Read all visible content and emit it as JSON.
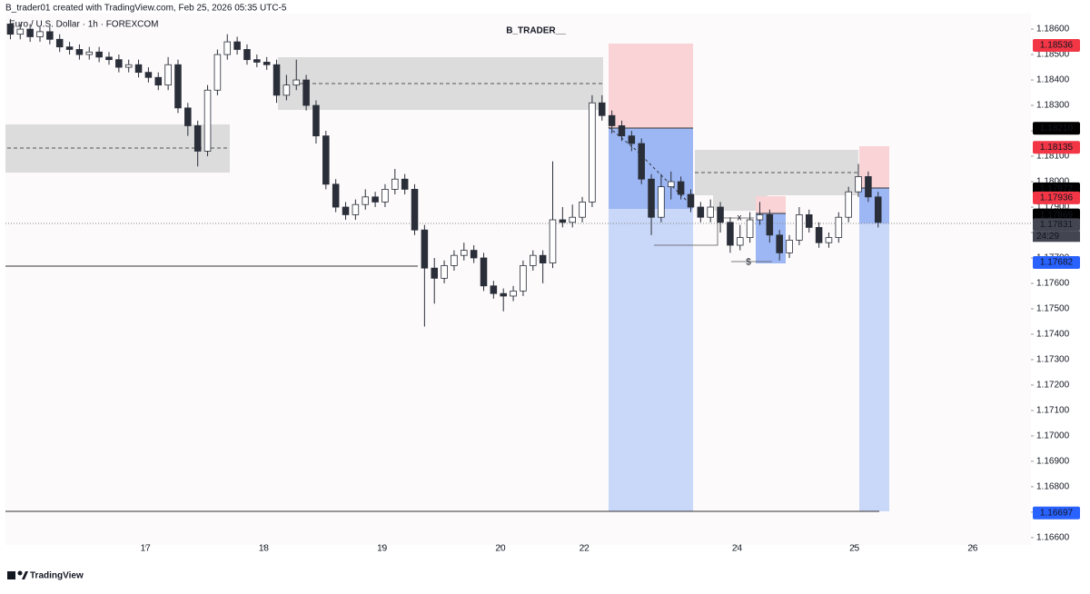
{
  "header": "B_trader01 created with TradingView.com, Feb 25, 2026 05:35 UTC-5",
  "symbol": "Euro / U.S. Dollar · 1h · FOREXCOM",
  "brand": "TradingView",
  "chart_data": {
    "type": "candlestick",
    "title": "B_TRADER__",
    "open": [
      1.1862,
      1.1858,
      1.186,
      1.1857,
      1.1859,
      1.1856,
      1.1853,
      1.1852,
      1.185,
      1.1851,
      1.1849,
      1.1848,
      1.1845,
      1.1846,
      1.1843,
      1.1841,
      1.1838,
      1.1846,
      1.1829,
      1.1822,
      1.1812,
      1.1836,
      1.185,
      1.1855,
      1.1852,
      1.1848,
      1.1847,
      1.1846,
      1.1834,
      1.1838,
      1.184,
      1.183,
      1.1818,
      1.1799,
      1.179,
      1.1787,
      1.1791,
      1.1794,
      1.1792,
      1.1797,
      1.1801,
      1.1797,
      1.1781,
      1.1766,
      1.1762,
      1.1767,
      1.1771,
      1.1773,
      1.177,
      1.1759,
      1.1756,
      1.1755,
      1.1757,
      1.1767,
      1.1771,
      1.1768,
      1.1785,
      1.1784,
      1.1786,
      1.1792,
      1.1831,
      1.1826,
      1.1822,
      1.1818,
      1.1815,
      1.1801,
      1.1786,
      1.1798,
      1.18,
      1.1795,
      1.179,
      1.1786,
      1.179,
      1.1784,
      1.1775,
      1.1778,
      1.1785,
      1.1787,
      1.1779,
      1.1772,
      1.1777,
      1.1787,
      1.1782,
      1.1776,
      1.1778,
      1.1786,
      1.1796,
      1.1802,
      1.1794
    ],
    "high": [
      1.1864,
      1.1862,
      1.1862,
      1.1861,
      1.1861,
      1.1858,
      1.1855,
      1.1854,
      1.1853,
      1.1853,
      1.1851,
      1.185,
      1.1848,
      1.1848,
      1.1845,
      1.1843,
      1.1849,
      1.1848,
      1.1831,
      1.1824,
      1.1838,
      1.1852,
      1.1858,
      1.1857,
      1.1854,
      1.185,
      1.1849,
      1.1848,
      1.1842,
      1.1848,
      1.1842,
      1.1832,
      1.182,
      1.1801,
      1.1792,
      1.1793,
      1.1797,
      1.1796,
      1.1799,
      1.1805,
      1.1803,
      1.1799,
      1.1783,
      1.177,
      1.1769,
      1.1773,
      1.1776,
      1.1775,
      1.1772,
      1.1761,
      1.1758,
      1.1759,
      1.1769,
      1.1773,
      1.1773,
      1.1808,
      1.179,
      1.1791,
      1.1794,
      1.1834,
      1.1834,
      1.1828,
      1.1824,
      1.182,
      1.1817,
      1.1803,
      1.1803,
      1.1804,
      1.1802,
      1.1797,
      1.1792,
      1.1793,
      1.1792,
      1.1786,
      1.1783,
      1.1788,
      1.1792,
      1.1789,
      1.1781,
      1.1779,
      1.179,
      1.1789,
      1.1784,
      1.178,
      1.1788,
      1.1798,
      1.1807,
      1.1804,
      1.1796
    ],
    "low": [
      1.1856,
      1.1856,
      1.1855,
      1.1855,
      1.1854,
      1.1851,
      1.185,
      1.1848,
      1.1848,
      1.1847,
      1.1846,
      1.1843,
      1.1843,
      1.1841,
      1.1839,
      1.1836,
      1.1836,
      1.1827,
      1.1818,
      1.1806,
      1.181,
      1.1834,
      1.1848,
      1.185,
      1.1846,
      1.1845,
      1.1844,
      1.1831,
      1.1832,
      1.1836,
      1.1828,
      1.1815,
      1.1797,
      1.1788,
      1.1785,
      1.1785,
      1.1789,
      1.179,
      1.179,
      1.1795,
      1.1795,
      1.1779,
      1.1743,
      1.1752,
      1.176,
      1.1765,
      1.1769,
      1.1768,
      1.1757,
      1.1754,
      1.1749,
      1.1753,
      1.1755,
      1.1765,
      1.176,
      1.1766,
      1.1782,
      1.1782,
      1.1784,
      1.179,
      1.1824,
      1.1819,
      1.1816,
      1.1812,
      1.1799,
      1.1779,
      1.1784,
      1.1793,
      1.1793,
      1.1788,
      1.1784,
      1.1784,
      1.178,
      1.1772,
      1.1773,
      1.1776,
      1.1783,
      1.1776,
      1.1769,
      1.177,
      1.1775,
      1.178,
      1.1774,
      1.1774,
      1.1776,
      1.1784,
      1.1794,
      1.1792,
      1.1782
    ],
    "close": [
      1.1858,
      1.186,
      1.1857,
      1.1859,
      1.1856,
      1.1853,
      1.1852,
      1.185,
      1.1851,
      1.1849,
      1.1848,
      1.1845,
      1.1846,
      1.1843,
      1.1841,
      1.1838,
      1.1846,
      1.1829,
      1.1822,
      1.1812,
      1.1836,
      1.185,
      1.1855,
      1.1852,
      1.1848,
      1.1847,
      1.1846,
      1.1834,
      1.1838,
      1.184,
      1.183,
      1.1818,
      1.1799,
      1.179,
      1.1787,
      1.1791,
      1.1794,
      1.1792,
      1.1797,
      1.1801,
      1.1797,
      1.1781,
      1.1766,
      1.1762,
      1.1767,
      1.1771,
      1.1773,
      1.177,
      1.1759,
      1.1756,
      1.1755,
      1.1757,
      1.1767,
      1.1771,
      1.1768,
      1.1785,
      1.1784,
      1.1786,
      1.1792,
      1.1831,
      1.1826,
      1.1822,
      1.1818,
      1.1815,
      1.1801,
      1.1786,
      1.1798,
      1.18,
      1.1795,
      1.179,
      1.1786,
      1.179,
      1.1784,
      1.1775,
      1.1778,
      1.1785,
      1.1787,
      1.1779,
      1.1772,
      1.1777,
      1.1787,
      1.1782,
      1.1776,
      1.1778,
      1.1786,
      1.1796,
      1.1802,
      1.1794,
      1.1784
    ],
    "up_color": "#ffffff",
    "down_color": "#2a2e39",
    "wick_color": "#2a2e39",
    "xlim": [
      -0.5,
      103.5
    ],
    "xticks": [
      {
        "value": 13.7,
        "label": "17"
      },
      {
        "value": 25.7,
        "label": "18"
      },
      {
        "value": 37.7,
        "label": "19"
      },
      {
        "value": 49.7,
        "label": "20"
      },
      {
        "value": 58.2,
        "label": "22"
      },
      {
        "value": 73.7,
        "label": "24"
      },
      {
        "value": 85.6,
        "label": "25"
      },
      {
        "value": 97.6,
        "label": "26"
      }
    ],
    "ylim": [
      1.16571,
      1.18661
    ],
    "yticks": [
      {
        "value": 1.166,
        "label": "1.16600"
      },
      {
        "value": 1.167,
        "label": "1.16700"
      },
      {
        "value": 1.168,
        "label": "1.16800"
      },
      {
        "value": 1.169,
        "label": "1.16900"
      },
      {
        "value": 1.17,
        "label": "1.17000"
      },
      {
        "value": 1.171,
        "label": "1.17100"
      },
      {
        "value": 1.172,
        "label": "1.17200"
      },
      {
        "value": 1.173,
        "label": "1.17300"
      },
      {
        "value": 1.174,
        "label": "1.17400"
      },
      {
        "value": 1.175,
        "label": "1.17500"
      },
      {
        "value": 1.176,
        "label": "1.17600"
      },
      {
        "value": 1.177,
        "label": "1.17700"
      },
      {
        "value": 1.178,
        "label": "1.17800"
      },
      {
        "value": 1.179,
        "label": "1.17900"
      },
      {
        "value": 1.18,
        "label": "1.18000"
      },
      {
        "value": 1.181,
        "label": "1.18100"
      },
      {
        "value": 1.182,
        "label": "1.18200"
      },
      {
        "value": 1.183,
        "label": "1.18300"
      },
      {
        "value": 1.184,
        "label": "1.18400"
      },
      {
        "value": 1.185,
        "label": "1.18500"
      },
      {
        "value": 1.186,
        "label": "1.18600"
      }
    ],
    "price_labels": [
      {
        "value": 1.18536,
        "label": "1.18536",
        "color": "#f23645"
      },
      {
        "value": 1.1821,
        "label": "1.18210",
        "color": "#000000"
      },
      {
        "value": 1.18135,
        "label": "1.18135",
        "color": "#f23645"
      },
      {
        "value": 1.17972,
        "label": "1.17972",
        "color": "#000000"
      },
      {
        "value": 1.17936,
        "label": "1.17936",
        "color": "#f23645"
      },
      {
        "value": 1.17869,
        "label": "1.17869",
        "color": "#000000"
      },
      {
        "value": 1.17831,
        "label": "1.17831",
        "color": "#434651"
      },
      {
        "value": 1.17682,
        "label": "1.17682",
        "color": "#2962ff"
      },
      {
        "value": 1.16697,
        "label": "1.16697",
        "color": "#2962ff"
      }
    ],
    "countdown": "24:29",
    "annotations": [
      "$",
      "x"
    ]
  }
}
